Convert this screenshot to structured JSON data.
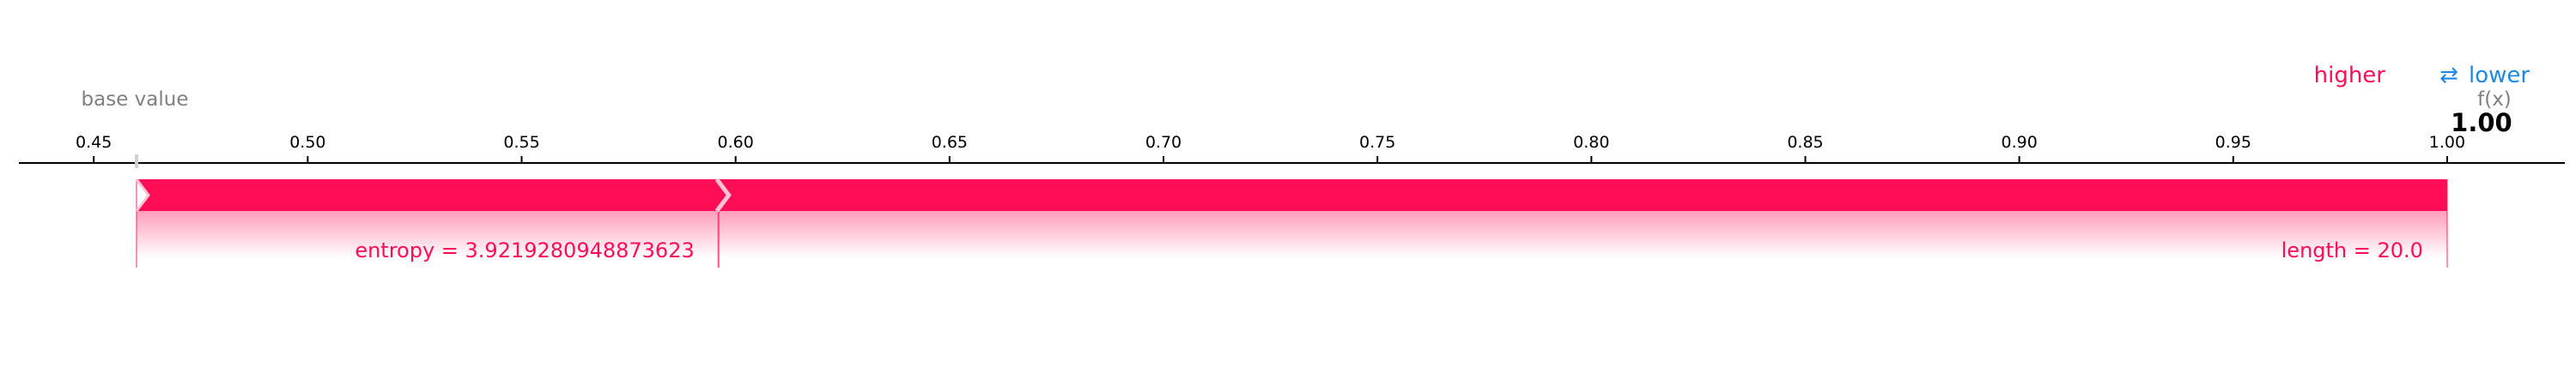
{
  "legend": {
    "higher": "higher",
    "arrows": "⇄",
    "lower": "lower"
  },
  "base_value_label": "base value",
  "fx_label": "f(x)",
  "fx_value_label": "1.00",
  "colors": {
    "positive": "#ff0d57",
    "negative": "#1e88e5",
    "axis": "#000000",
    "muted": "#808080"
  },
  "chart_data": {
    "type": "force",
    "title": "",
    "xlabel": "",
    "ylabel": "",
    "xlim": [
      0.4325,
      1.0275
    ],
    "ticks": [
      "0.45",
      "0.50",
      "0.55",
      "0.60",
      "0.65",
      "0.70",
      "0.75",
      "0.80",
      "0.85",
      "0.90",
      "0.95",
      "1.00"
    ],
    "base_value": 0.46,
    "output_value": 1.0,
    "features": [
      {
        "label": "entropy = 3.9219280948873623",
        "start": 0.46,
        "end": 0.596,
        "direction": "higher"
      },
      {
        "label": "length = 20.0",
        "start": 0.596,
        "end": 1.0,
        "direction": "higher"
      }
    ]
  }
}
